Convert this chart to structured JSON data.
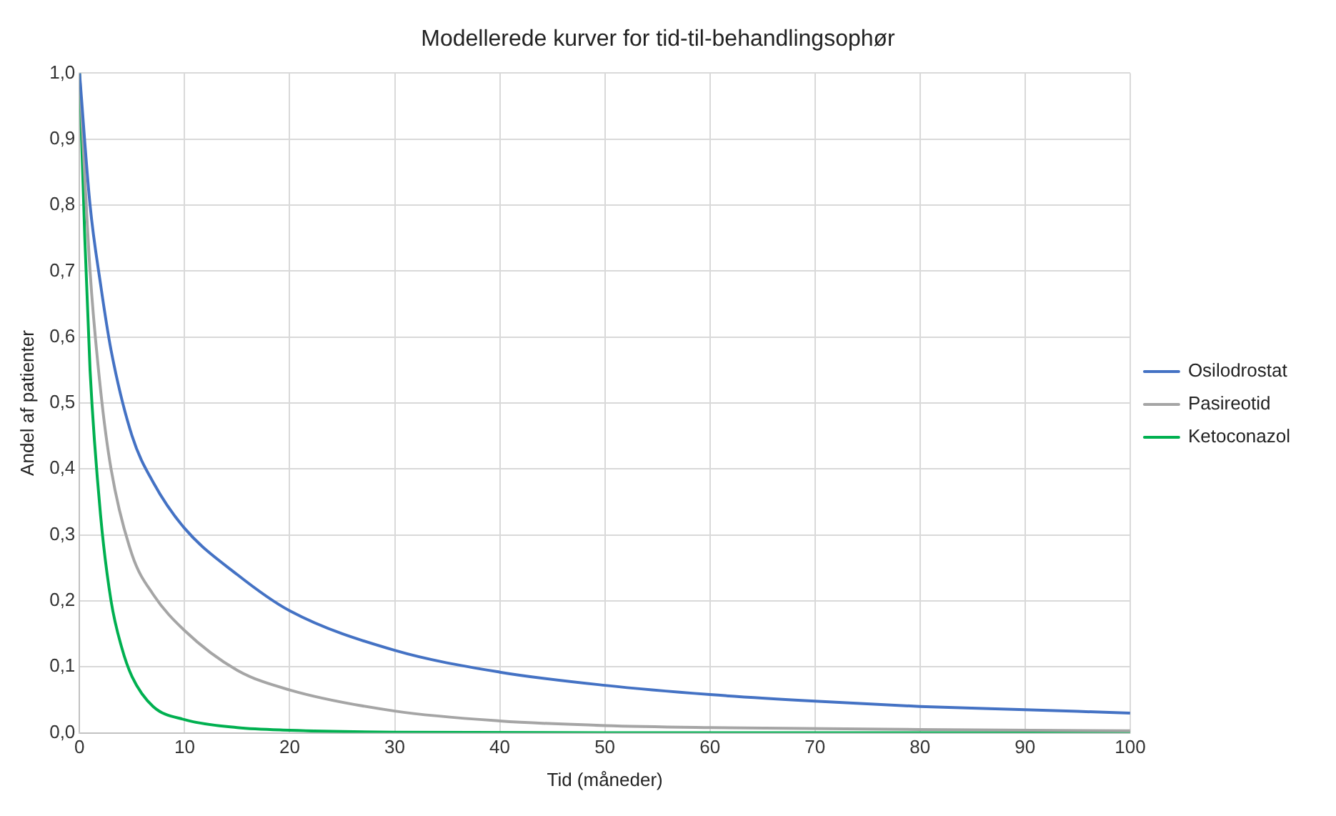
{
  "chart_data": {
    "type": "line",
    "title": "Modellerede kurver for tid-til-behandlingsophør",
    "xlabel": "Tid (måneder)",
    "ylabel": "Andel af patienter",
    "xlim": [
      0,
      100
    ],
    "xticks": [
      0,
      10,
      20,
      30,
      40,
      50,
      60,
      70,
      80,
      90,
      100
    ],
    "ylim": [
      0,
      1
    ],
    "yticks": [
      {
        "value": 0,
        "label": "0,0"
      },
      {
        "value": 0.1,
        "label": "0,1"
      },
      {
        "value": 0.2,
        "label": "0,2"
      },
      {
        "value": 0.3,
        "label": "0,3"
      },
      {
        "value": 0.4,
        "label": "0,4"
      },
      {
        "value": 0.5,
        "label": "0,5"
      },
      {
        "value": 0.6,
        "label": "0,6"
      },
      {
        "value": 0.7,
        "label": "0,7"
      },
      {
        "value": 0.8,
        "label": "0,8"
      },
      {
        "value": 0.9,
        "label": "0,9"
      },
      {
        "value": 1,
        "label": "1,0"
      }
    ],
    "grid": true,
    "legend": "right",
    "marker": "none",
    "line_style": "solid",
    "series": [
      {
        "name": "Osilodrostat",
        "color": "#4472c4",
        "x": [
          0,
          1,
          2,
          3,
          5,
          7,
          10,
          15,
          20,
          30,
          40,
          50,
          60,
          70,
          80,
          90,
          100
        ],
        "values": [
          1,
          0.8,
          0.68,
          0.58,
          0.45,
          0.38,
          0.31,
          0.24,
          0.185,
          0.125,
          0.092,
          0.072,
          0.058,
          0.048,
          0.04,
          0.035,
          0.03
        ]
      },
      {
        "name": "Pasireotid",
        "color": "#a5a5a5",
        "x": [
          0,
          1,
          2,
          3,
          5,
          7,
          10,
          15,
          20,
          30,
          40,
          50,
          60,
          80,
          100
        ],
        "values": [
          1,
          0.7,
          0.52,
          0.4,
          0.27,
          0.21,
          0.155,
          0.095,
          0.065,
          0.033,
          0.018,
          0.011,
          0.008,
          0.005,
          0.003
        ]
      },
      {
        "name": "Ketoconazol",
        "color": "#00b050",
        "x": [
          0,
          0.5,
          1,
          2,
          3,
          4,
          5,
          7,
          10,
          15,
          20,
          30,
          50,
          100
        ],
        "values": [
          1,
          0.75,
          0.55,
          0.33,
          0.2,
          0.13,
          0.085,
          0.04,
          0.02,
          0.008,
          0.004,
          0.001,
          0,
          0
        ]
      }
    ]
  }
}
